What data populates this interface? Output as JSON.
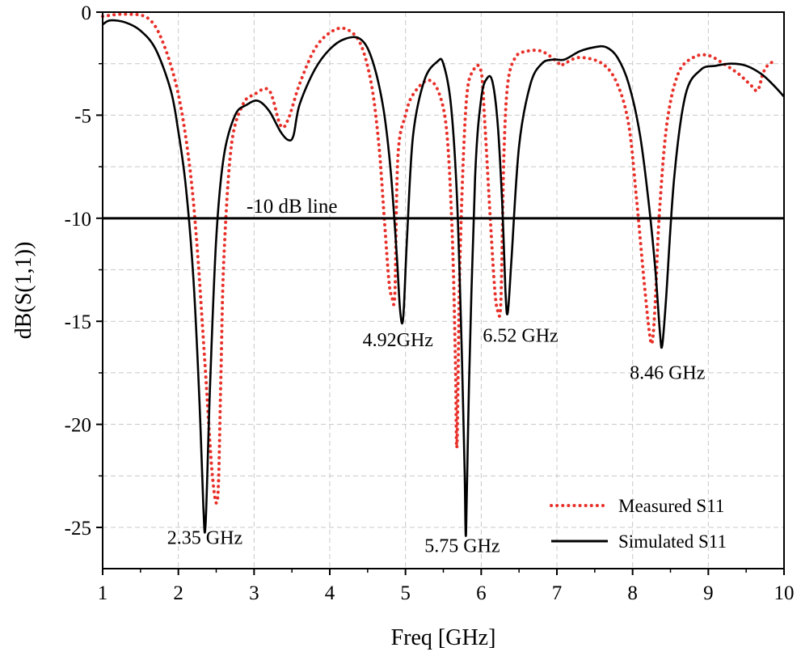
{
  "chart_data": {
    "type": "line",
    "xlabel": "Freq [GHz]",
    "ylabel": "dB(S(1,1))",
    "xlim": [
      1,
      10
    ],
    "ylim": [
      -27,
      0
    ],
    "xticks": [
      1,
      2,
      3,
      4,
      5,
      6,
      7,
      8,
      9,
      10
    ],
    "yticks": [
      0,
      -5,
      -10,
      -15,
      -20,
      -25
    ],
    "grid": true,
    "legend_position": "bottom-right",
    "reference_line": {
      "y": -10,
      "label": "-10 dB line"
    },
    "annotations": [
      {
        "text": "2.35 GHz",
        "x": 2.35,
        "y": -25.8
      },
      {
        "text": "4.92GHz",
        "x": 4.9,
        "y": -16.2
      },
      {
        "text": "5.75 GHz",
        "x": 5.75,
        "y": -26.2
      },
      {
        "text": "6.52 GHz",
        "x": 6.52,
        "y": -16.0
      },
      {
        "text": "8.46 GHz",
        "x": 8.46,
        "y": -17.8
      }
    ],
    "series": [
      {
        "name": "Measured S11",
        "style": "dotted",
        "color": "#e8312a",
        "x": [
          1.0,
          1.3,
          1.6,
          1.8,
          2.0,
          2.15,
          2.25,
          2.35,
          2.45,
          2.52,
          2.56,
          2.6,
          2.7,
          2.85,
          3.0,
          3.2,
          3.35,
          3.45,
          3.6,
          3.8,
          4.0,
          4.2,
          4.4,
          4.55,
          4.65,
          4.72,
          4.78,
          4.82,
          4.86,
          4.9,
          5.0,
          5.1,
          5.3,
          5.45,
          5.55,
          5.62,
          5.66,
          5.68,
          5.72,
          5.8,
          5.9,
          6.0,
          6.05,
          6.12,
          6.18,
          6.22,
          6.26,
          6.3,
          6.35,
          6.45,
          6.6,
          6.8,
          7.0,
          7.05,
          7.1,
          7.3,
          7.6,
          7.8,
          7.95,
          8.05,
          8.15,
          8.22,
          8.26,
          8.3,
          8.35,
          8.45,
          8.6,
          8.8,
          9.0,
          9.2,
          9.4,
          9.55,
          9.65,
          9.72,
          9.78,
          9.9
        ],
        "y": [
          -0.2,
          -0.1,
          -0.3,
          -1.5,
          -4.0,
          -7.5,
          -11.5,
          -17.0,
          -22.5,
          -23.5,
          -18.0,
          -12.0,
          -6.5,
          -4.5,
          -4.0,
          -3.8,
          -5.5,
          -5.2,
          -3.5,
          -1.8,
          -1.0,
          -0.8,
          -1.5,
          -3.5,
          -6.5,
          -10.0,
          -13.0,
          -13.8,
          -13.6,
          -7.0,
          -5.0,
          -4.0,
          -3.3,
          -4.0,
          -6.0,
          -11.0,
          -17.0,
          -21.0,
          -12.0,
          -4.5,
          -2.8,
          -2.9,
          -5.5,
          -10.0,
          -13.5,
          -14.5,
          -14.0,
          -7.0,
          -3.5,
          -2.2,
          -1.9,
          -1.9,
          -2.4,
          -2.6,
          -2.5,
          -2.2,
          -2.5,
          -3.5,
          -5.5,
          -9.0,
          -13.0,
          -15.5,
          -16.0,
          -14.0,
          -10.0,
          -5.5,
          -3.0,
          -2.2,
          -2.1,
          -2.5,
          -3.0,
          -3.5,
          -3.8,
          -3.0,
          -2.6,
          -2.3
        ]
      },
      {
        "name": "Simulated S11",
        "style": "solid",
        "color": "#000000",
        "x": [
          1.0,
          1.1,
          1.3,
          1.5,
          1.7,
          1.9,
          2.0,
          2.1,
          2.2,
          2.28,
          2.33,
          2.36,
          2.42,
          2.5,
          2.6,
          2.75,
          2.9,
          3.05,
          3.2,
          3.35,
          3.45,
          3.52,
          3.6,
          3.8,
          4.0,
          4.2,
          4.4,
          4.55,
          4.7,
          4.8,
          4.88,
          4.93,
          4.97,
          5.02,
          5.1,
          5.25,
          5.42,
          5.5,
          5.6,
          5.68,
          5.74,
          5.78,
          5.8,
          5.84,
          5.92,
          6.0,
          6.08,
          6.15,
          6.22,
          6.28,
          6.32,
          6.35,
          6.4,
          6.5,
          6.65,
          6.8,
          6.95,
          7.1,
          7.3,
          7.5,
          7.65,
          7.8,
          7.95,
          8.1,
          8.22,
          8.3,
          8.36,
          8.39,
          8.44,
          8.55,
          8.7,
          8.9,
          9.1,
          9.3,
          9.5,
          9.7,
          9.85,
          10.0
        ],
        "y": [
          -0.6,
          -0.4,
          -0.5,
          -0.9,
          -1.8,
          -3.8,
          -5.8,
          -8.5,
          -13.0,
          -19.0,
          -24.0,
          -24.8,
          -18.0,
          -11.0,
          -7.0,
          -5.0,
          -4.5,
          -4.3,
          -4.8,
          -5.8,
          -6.2,
          -6.0,
          -4.5,
          -2.8,
          -1.8,
          -1.3,
          -1.3,
          -2.2,
          -4.5,
          -7.5,
          -11.5,
          -14.5,
          -14.8,
          -11.0,
          -6.0,
          -3.3,
          -2.4,
          -2.5,
          -4.5,
          -9.0,
          -16.0,
          -22.0,
          -25.3,
          -18.0,
          -8.0,
          -4.2,
          -3.2,
          -3.4,
          -5.5,
          -9.5,
          -13.5,
          -14.6,
          -12.0,
          -6.5,
          -3.5,
          -2.5,
          -2.3,
          -2.3,
          -1.9,
          -1.7,
          -1.7,
          -2.2,
          -3.5,
          -6.0,
          -9.5,
          -12.5,
          -15.5,
          -16.2,
          -14.0,
          -8.0,
          -4.0,
          -2.8,
          -2.6,
          -2.5,
          -2.6,
          -3.0,
          -3.5,
          -4.1
        ]
      }
    ]
  }
}
